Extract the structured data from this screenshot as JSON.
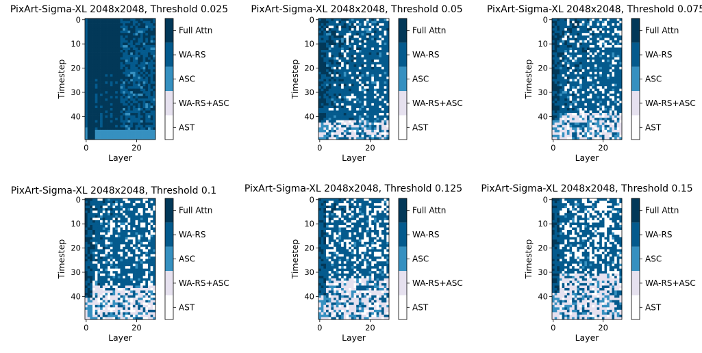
{
  "figure": {
    "colormap": {
      "categories": [
        "Full Attn",
        "WA-RS",
        "ASC",
        "WA-RS+ASC",
        "AST"
      ],
      "colors": [
        "#023858",
        "#045a8d",
        "#3690c0",
        "#e6e1ef",
        "#ffffff"
      ]
    }
  },
  "chart_data": [
    {
      "type": "heatmap",
      "title": "PixArt-Sigma-XL 2048x2048, Threshold 0.025",
      "xlabel": "Layer",
      "ylabel": "Timestep",
      "x_ticks": [
        0,
        20
      ],
      "y_ticks": [
        0,
        10,
        20,
        30,
        40
      ],
      "n_layers": 28,
      "n_timesteps": 50,
      "threshold": 0.025,
      "legend": [
        "Full Attn",
        "WA-RS",
        "ASC",
        "WA-RS+ASC",
        "AST"
      ]
    },
    {
      "type": "heatmap",
      "title": "PixArt-Sigma-XL 2048x2048, Threshold 0.05",
      "xlabel": "Layer",
      "ylabel": "Timestep",
      "x_ticks": [
        0,
        20
      ],
      "y_ticks": [
        0,
        10,
        20,
        30,
        40
      ],
      "n_layers": 28,
      "n_timesteps": 50,
      "threshold": 0.05,
      "legend": [
        "Full Attn",
        "WA-RS",
        "ASC",
        "WA-RS+ASC",
        "AST"
      ]
    },
    {
      "type": "heatmap",
      "title": "PixArt-Sigma-XL 2048x2048, Threshold 0.075",
      "xlabel": "Layer",
      "ylabel": "Timestep",
      "x_ticks": [
        0,
        20
      ],
      "y_ticks": [
        0,
        10,
        20,
        30,
        40
      ],
      "n_layers": 28,
      "n_timesteps": 50,
      "threshold": 0.075,
      "legend": [
        "Full Attn",
        "WA-RS",
        "ASC",
        "WA-RS+ASC",
        "AST"
      ]
    },
    {
      "type": "heatmap",
      "title": "PixArt-Sigma-XL 2048x2048, Threshold 0.1",
      "xlabel": "Layer",
      "ylabel": "Timestep",
      "x_ticks": [
        0,
        20
      ],
      "y_ticks": [
        0,
        10,
        20,
        30,
        40
      ],
      "n_layers": 28,
      "n_timesteps": 50,
      "threshold": 0.1,
      "legend": [
        "Full Attn",
        "WA-RS",
        "ASC",
        "WA-RS+ASC",
        "AST"
      ]
    },
    {
      "type": "heatmap",
      "title": "PixArt-Sigma-XL 2048x2048, Threshold 0.125",
      "xlabel": "Layer",
      "ylabel": "Timestep",
      "x_ticks": [
        0,
        20
      ],
      "y_ticks": [
        0,
        10,
        20,
        30,
        40
      ],
      "n_layers": 28,
      "n_timesteps": 50,
      "threshold": 0.125,
      "legend": [
        "Full Attn",
        "WA-RS",
        "ASC",
        "WA-RS+ASC",
        "AST"
      ]
    },
    {
      "type": "heatmap",
      "title": "PixArt-Sigma-XL 2048x2048, Threshold 0.15",
      "xlabel": "Layer",
      "ylabel": "Timestep",
      "x_ticks": [
        0,
        20
      ],
      "y_ticks": [
        0,
        10,
        20,
        30,
        40
      ],
      "n_layers": 28,
      "n_timesteps": 50,
      "threshold": 0.15,
      "legend": [
        "Full Attn",
        "WA-RS",
        "ASC",
        "WA-RS+ASC",
        "AST"
      ]
    }
  ]
}
